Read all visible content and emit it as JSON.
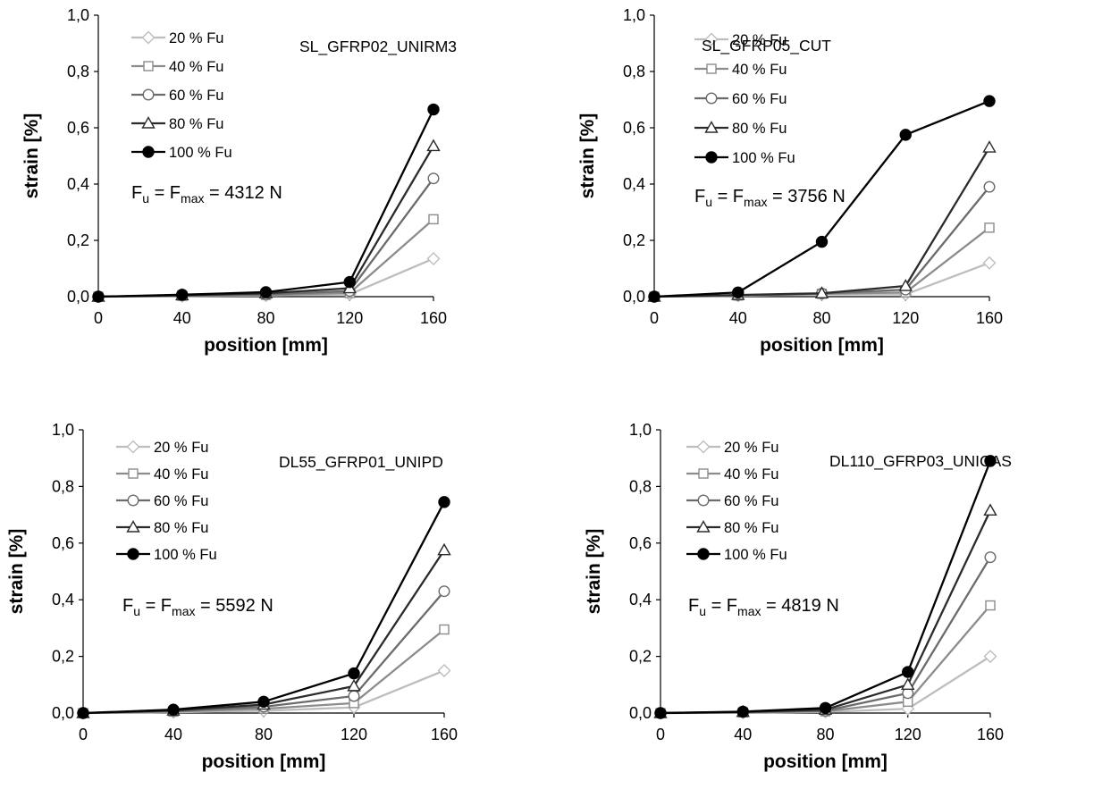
{
  "chart_data": [
    {
      "type": "line",
      "title": "SL_GFRP02_UNIRM3",
      "xlabel": "position [mm]",
      "ylabel": "strain [%]",
      "x": [
        0,
        40,
        80,
        120,
        160
      ],
      "xlim": [
        0,
        160
      ],
      "ylim": [
        0,
        1.0
      ],
      "xticks": [
        "0",
        "40",
        "80",
        "120",
        "160"
      ],
      "yticks": [
        "0,0",
        "0,2",
        "0,4",
        "0,6",
        "0,8",
        "1,0"
      ],
      "grid": false,
      "legend_position": "top-left",
      "annotation": {
        "F": "F",
        "u": "u",
        "eq": " = F",
        "max": "max",
        "value": " = 4312 N"
      },
      "series": [
        {
          "name": "20 % Fu",
          "values": [
            0,
            0.002,
            0.004,
            0.008,
            0.135
          ],
          "color": "#bdbdbd",
          "marker": "diamond-open"
        },
        {
          "name": "40 % Fu",
          "values": [
            0,
            0.003,
            0.006,
            0.013,
            0.275
          ],
          "color": "#8c8c8c",
          "marker": "square-open"
        },
        {
          "name": "60 % Fu",
          "values": [
            0,
            0.004,
            0.008,
            0.02,
            0.42
          ],
          "color": "#6b6b6b",
          "marker": "circle-open"
        },
        {
          "name": "80 % Fu",
          "values": [
            0,
            0.005,
            0.012,
            0.03,
            0.535
          ],
          "color": "#2b2b2b",
          "marker": "triangle-open"
        },
        {
          "name": "100 % Fu",
          "values": [
            0,
            0.007,
            0.016,
            0.052,
            0.665
          ],
          "color": "#000000",
          "marker": "circle-filled"
        }
      ]
    },
    {
      "type": "line",
      "title": "SL_GFRP05_CUT",
      "xlabel": "position [mm]",
      "ylabel": "strain [%]",
      "x": [
        0,
        40,
        80,
        120,
        160
      ],
      "xlim": [
        0,
        160
      ],
      "ylim": [
        0,
        1.0
      ],
      "xticks": [
        "0",
        "40",
        "80",
        "120",
        "160"
      ],
      "yticks": [
        "0,0",
        "0,2",
        "0,4",
        "0,6",
        "0,8",
        "1,0"
      ],
      "grid": false,
      "legend_position": "top-left",
      "annotation": {
        "F": "F",
        "u": "u",
        "eq": " = F",
        "max": "max",
        "value": " = 3756 N"
      },
      "series": [
        {
          "name": "20 % Fu",
          "values": [
            0,
            0.003,
            0.008,
            0.008,
            0.12
          ],
          "color": "#bdbdbd",
          "marker": "diamond-open"
        },
        {
          "name": "40 % Fu",
          "values": [
            0,
            0.004,
            0.01,
            0.015,
            0.245
          ],
          "color": "#8c8c8c",
          "marker": "square-open"
        },
        {
          "name": "60 % Fu",
          "values": [
            0,
            0.005,
            0.011,
            0.025,
            0.39
          ],
          "color": "#6b6b6b",
          "marker": "circle-open"
        },
        {
          "name": "80 % Fu",
          "values": [
            0,
            0.006,
            0.012,
            0.038,
            0.53
          ],
          "color": "#2b2b2b",
          "marker": "triangle-open"
        },
        {
          "name": "100 % Fu",
          "values": [
            0,
            0.015,
            0.195,
            0.575,
            0.695
          ],
          "color": "#000000",
          "marker": "circle-filled"
        }
      ]
    },
    {
      "type": "line",
      "title": "DL55_GFRP01_UNIPD",
      "xlabel": "position [mm]",
      "ylabel": "strain [%]",
      "x": [
        0,
        40,
        80,
        120,
        160
      ],
      "xlim": [
        0,
        160
      ],
      "ylim": [
        0,
        1.0
      ],
      "xticks": [
        "0",
        "40",
        "80",
        "120",
        "160"
      ],
      "yticks": [
        "0,0",
        "0,2",
        "0,4",
        "0,6",
        "0,8",
        "1,0"
      ],
      "grid": false,
      "legend_position": "top-left",
      "annotation": {
        "F": "F",
        "u": "u",
        "eq": " = F",
        "max": "max",
        "value": " = 5592 N"
      },
      "series": [
        {
          "name": "20 % Fu",
          "values": [
            0,
            0.003,
            0.008,
            0.02,
            0.15
          ],
          "color": "#bdbdbd",
          "marker": "diamond-open"
        },
        {
          "name": "40 % Fu",
          "values": [
            0,
            0.005,
            0.015,
            0.035,
            0.295
          ],
          "color": "#8c8c8c",
          "marker": "square-open"
        },
        {
          "name": "60 % Fu",
          "values": [
            0,
            0.007,
            0.022,
            0.06,
            0.43
          ],
          "color": "#6b6b6b",
          "marker": "circle-open"
        },
        {
          "name": "80 % Fu",
          "values": [
            0,
            0.009,
            0.03,
            0.095,
            0.575
          ],
          "color": "#2b2b2b",
          "marker": "triangle-open"
        },
        {
          "name": "100 % Fu",
          "values": [
            0,
            0.012,
            0.04,
            0.14,
            0.745
          ],
          "color": "#000000",
          "marker": "circle-filled"
        }
      ]
    },
    {
      "type": "line",
      "title": "DL110_GFRP03_UNICAS",
      "xlabel": "position [mm]",
      "ylabel": "strain [%]",
      "x": [
        0,
        40,
        80,
        120,
        160
      ],
      "xlim": [
        0,
        160
      ],
      "ylim": [
        0,
        1.0
      ],
      "xticks": [
        "0",
        "40",
        "80",
        "120",
        "160"
      ],
      "yticks": [
        "0,0",
        "0,2",
        "0,4",
        "0,6",
        "0,8",
        "1,0"
      ],
      "grid": false,
      "legend_position": "top-left",
      "annotation": {
        "F": "F",
        "u": "u",
        "eq": " = F",
        "max": "max",
        "value": " = 4819 N"
      },
      "series": [
        {
          "name": "20 % Fu",
          "values": [
            0,
            0.001,
            0.004,
            0.015,
            0.2
          ],
          "color": "#bdbdbd",
          "marker": "diamond-open"
        },
        {
          "name": "40 % Fu",
          "values": [
            0,
            0.002,
            0.006,
            0.04,
            0.38
          ],
          "color": "#8c8c8c",
          "marker": "square-open"
        },
        {
          "name": "60 % Fu",
          "values": [
            0,
            0.003,
            0.008,
            0.07,
            0.55
          ],
          "color": "#6b6b6b",
          "marker": "circle-open"
        },
        {
          "name": "80 % Fu",
          "values": [
            0,
            0.004,
            0.012,
            0.1,
            0.715
          ],
          "color": "#2b2b2b",
          "marker": "triangle-open"
        },
        {
          "name": "100 % Fu",
          "values": [
            0,
            0.005,
            0.018,
            0.145,
            0.89
          ],
          "color": "#000000",
          "marker": "circle-filled"
        }
      ]
    }
  ]
}
